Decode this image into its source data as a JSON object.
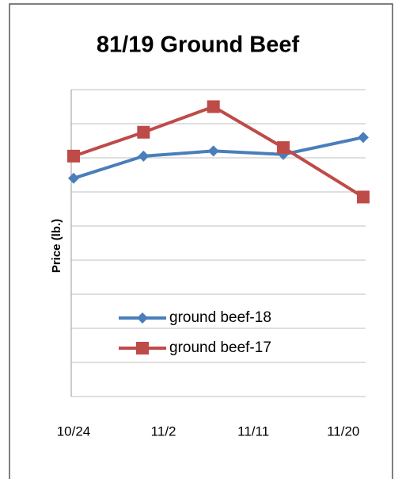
{
  "chart_data": {
    "type": "line",
    "title": "81/19 Ground Beef",
    "y_label": "Price (lb.)",
    "x": [
      "10/24",
      "10/31",
      "11/7",
      "11/14",
      "11/22"
    ],
    "xlim": [
      "10/24",
      "11/22"
    ],
    "xticks": [
      "10/24",
      "11/2",
      "11/11",
      "11/20"
    ],
    "series": [
      {
        "name": "ground beef-18",
        "color": "#4a7ebb",
        "marker": "diamond",
        "values": [
          6.4,
          7.05,
          7.2,
          7.1,
          7.6
        ]
      },
      {
        "name": "ground beef-17",
        "color": "#be4b48",
        "marker": "square",
        "values": [
          7.05,
          7.75,
          8.5,
          7.3,
          5.85
        ]
      }
    ],
    "ylim": [
      0,
      9
    ],
    "yticks": [
      0,
      1,
      2,
      3,
      4,
      5,
      6,
      7,
      8,
      9
    ],
    "grid": true,
    "legend": "bottom-left"
  }
}
